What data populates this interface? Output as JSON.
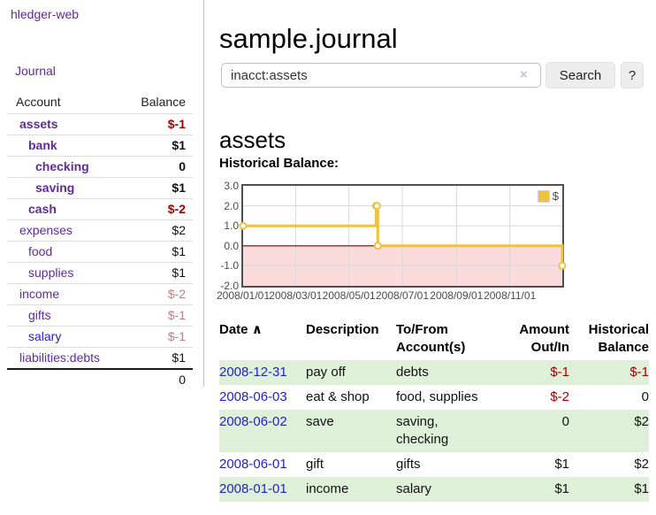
{
  "sidebar": {
    "brand": "hledger-web",
    "journal_link": "Journal",
    "accounts": {
      "col_account": "Account",
      "col_balance": "Balance",
      "rows": [
        {
          "name": "assets",
          "balance": "$-1"
        },
        {
          "name": "bank",
          "balance": "$1"
        },
        {
          "name": "checking",
          "balance": "0"
        },
        {
          "name": "saving",
          "balance": "$1"
        },
        {
          "name": "cash",
          "balance": "$-2"
        },
        {
          "name": "expenses",
          "balance": "$2"
        },
        {
          "name": "food",
          "balance": "$1"
        },
        {
          "name": "supplies",
          "balance": "$1"
        },
        {
          "name": "income",
          "balance": "$-2"
        },
        {
          "name": "gifts",
          "balance": "$-1"
        },
        {
          "name": "salary",
          "balance": "$-1"
        },
        {
          "name": "liabilities:debts",
          "balance": "$1"
        }
      ],
      "total": "0"
    }
  },
  "header": {
    "title": "sample.journal"
  },
  "search": {
    "value": "inacct:assets",
    "clear_icon": "×",
    "search_button": "Search",
    "help_button": "?"
  },
  "account_page": {
    "heading": "assets",
    "section_label": "Historical Balance:"
  },
  "chart_data": {
    "type": "line",
    "step": true,
    "title": "Historical Balance:",
    "series": [
      {
        "name": "$",
        "color": "#edc240",
        "points": [
          [
            "2008-01-01",
            1
          ],
          [
            "2008-06-01",
            2
          ],
          [
            "2008-06-02",
            2
          ],
          [
            "2008-06-03",
            0
          ],
          [
            "2008-12-31",
            -1
          ]
        ]
      }
    ],
    "xrange": [
      "2008-01-01",
      "2008-12-31"
    ],
    "ylim": [
      -2,
      3
    ],
    "yticks": [
      "3.0",
      "2.0",
      "1.0",
      "0.0",
      "-1.0",
      "-2.0"
    ],
    "xticks": [
      "2008/01/01",
      "2008/03/01",
      "2008/05/01",
      "2008/07/01",
      "2008/09/01",
      "2008/11/01"
    ],
    "grid": true,
    "legend_position": "top-right",
    "grid_color": "#d8d8d8",
    "negative_region_fill": "#fadada",
    "zero_line_color": "#8b0000"
  },
  "register_table": {
    "headers": {
      "date": "Date",
      "sort_icon": "∧",
      "description": "Description",
      "accounts": "To/From Account(s)",
      "amount": "Amount Out/In",
      "balance": "Historical Balance"
    },
    "rows": [
      {
        "date": "2008-12-31",
        "description": "pay off",
        "accounts": "debts",
        "amount": "$-1",
        "balance": "$-1"
      },
      {
        "date": "2008-06-03",
        "description": "eat & shop",
        "accounts": "food, supplies",
        "amount": "$-2",
        "balance": "0"
      },
      {
        "date": "2008-06-02",
        "description": "save",
        "accounts": "saving, checking",
        "amount": "0",
        "balance": "$2"
      },
      {
        "date": "2008-06-01",
        "description": "gift",
        "accounts": "gifts",
        "amount": "$1",
        "balance": "$2"
      },
      {
        "date": "2008-01-01",
        "description": "income",
        "accounts": "salary",
        "amount": "$1",
        "balance": "$1"
      }
    ]
  },
  "colors": {
    "accent_purple": "#5e2b97",
    "link_blue": "#2222cc",
    "negative_red": "#a40000",
    "negative_light_red": "#c0807f",
    "row_green": "#dff0d8",
    "chart_line_yellow": "#edc240",
    "chart_negative_bg": "#fadada",
    "chart_zero_line": "#8b0000"
  }
}
